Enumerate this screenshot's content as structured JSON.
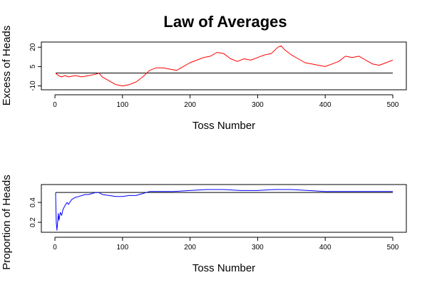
{
  "title": "Law of Averages",
  "chart_data": [
    {
      "type": "line",
      "xlabel": "Toss Number",
      "ylabel": "Excess of Heads",
      "xlim": [
        1,
        500
      ],
      "ylim": [
        -13,
        24
      ],
      "xticks": [
        0,
        100,
        200,
        300,
        400,
        500
      ],
      "yticks": [
        -10,
        5,
        20
      ],
      "reference_line": 0,
      "series": [
        {
          "color": "#ff0000",
          "x": [
            1,
            5,
            10,
            15,
            20,
            30,
            40,
            50,
            60,
            65,
            70,
            80,
            90,
            100,
            110,
            120,
            130,
            140,
            150,
            160,
            170,
            180,
            190,
            200,
            210,
            220,
            230,
            240,
            250,
            260,
            270,
            280,
            290,
            300,
            310,
            320,
            330,
            335,
            340,
            350,
            360,
            370,
            380,
            390,
            400,
            410,
            420,
            430,
            440,
            450,
            460,
            470,
            480,
            490,
            500
          ],
          "values": [
            0,
            -2,
            -3,
            -2,
            -3,
            -2,
            -3,
            -2,
            -1,
            0,
            -3,
            -6,
            -9,
            -10,
            -9,
            -7,
            -3,
            2,
            4,
            4,
            3,
            2,
            5,
            8,
            10,
            12,
            13,
            16,
            15,
            11,
            9,
            11,
            10,
            12,
            14,
            15,
            20,
            21,
            18,
            14,
            11,
            8,
            7,
            6,
            5,
            7,
            9,
            13,
            12,
            13,
            10,
            7,
            6,
            8,
            10
          ]
        }
      ]
    },
    {
      "type": "line",
      "xlabel": "Toss Number",
      "ylabel": "Proportion of Heads",
      "xlim": [
        1,
        500
      ],
      "ylim": [
        0.1,
        0.58
      ],
      "xticks": [
        0,
        100,
        200,
        300,
        400,
        500
      ],
      "yticks": [
        0.2,
        0.4
      ],
      "reference_line": 0.5,
      "series": [
        {
          "color": "#0000ff",
          "x": [
            1,
            2,
            3,
            4,
            5,
            6,
            8,
            10,
            12,
            15,
            18,
            20,
            25,
            30,
            35,
            40,
            45,
            50,
            55,
            60,
            65,
            70,
            80,
            90,
            100,
            110,
            120,
            130,
            140,
            150,
            175,
            200,
            225,
            250,
            275,
            300,
            325,
            350,
            375,
            400,
            425,
            450,
            475,
            500
          ],
          "values": [
            0.5,
            0.2,
            0.12,
            0.2,
            0.29,
            0.22,
            0.3,
            0.27,
            0.33,
            0.37,
            0.4,
            0.38,
            0.43,
            0.45,
            0.46,
            0.47,
            0.48,
            0.48,
            0.49,
            0.5,
            0.5,
            0.48,
            0.47,
            0.46,
            0.46,
            0.47,
            0.47,
            0.49,
            0.51,
            0.51,
            0.51,
            0.52,
            0.53,
            0.53,
            0.52,
            0.52,
            0.53,
            0.53,
            0.52,
            0.51,
            0.51,
            0.51,
            0.51,
            0.51
          ]
        }
      ]
    }
  ]
}
